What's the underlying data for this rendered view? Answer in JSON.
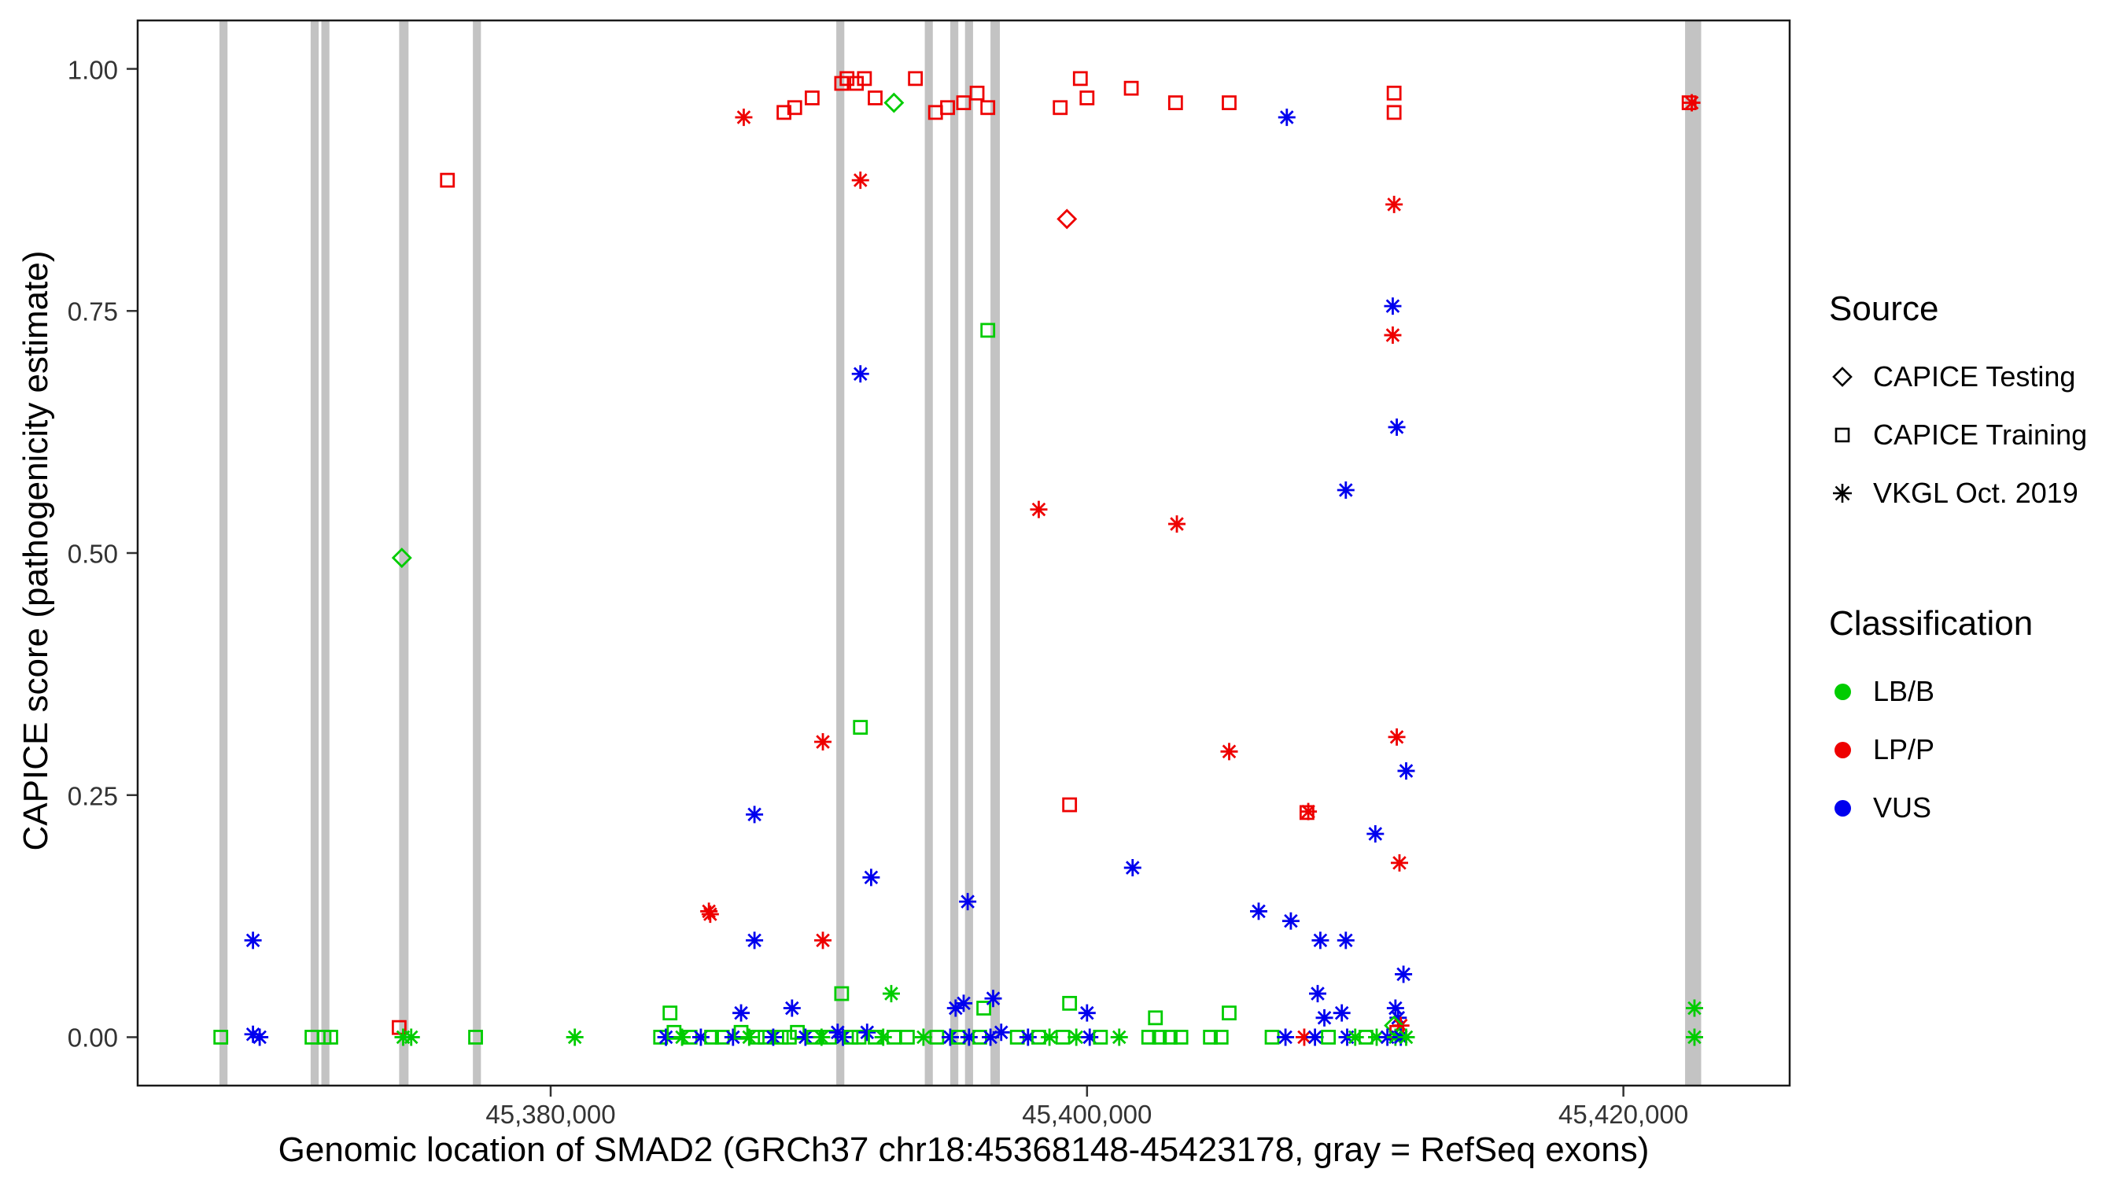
{
  "figure": {
    "y_axis_title": "CAPICE score (pathogenicity estimate)",
    "x_axis_title": "Genomic location of SMAD2 (GRCh37 chr18:45368148-45423178, gray = RefSeq exons)"
  },
  "legend": {
    "source_title": "Source",
    "source_items": [
      {
        "label": "CAPICE Testing",
        "shape": "diamond"
      },
      {
        "label": "CAPICE Training",
        "shape": "square"
      },
      {
        "label": "VKGL Oct. 2019",
        "shape": "asterisk"
      }
    ],
    "classification_title": "Classification",
    "classification_items": [
      {
        "label": "LB/B",
        "color": "#00CC00"
      },
      {
        "label": "LP/P",
        "color": "#EE0000"
      },
      {
        "label": "VUS",
        "color": "#0000EE"
      }
    ]
  },
  "colors": {
    "g": "#00CC00",
    "r": "#EE0000",
    "b": "#0000EE",
    "exon": "#C3C3C3",
    "panel_border": "#1a1a1a",
    "tick": "#333333"
  },
  "chart_data": {
    "type": "scatter",
    "title": "",
    "xlabel": "Genomic location of SMAD2 (GRCh37 chr18:45368148-45423178, gray = RefSeq exons)",
    "ylabel": "CAPICE score (pathogenicity estimate)",
    "xlim": [
      45364600,
      45426200
    ],
    "ylim": [
      -0.05,
      1.05
    ],
    "grid": false,
    "legend_position": "right",
    "x_ticks": [
      45380000,
      45400000,
      45420000
    ],
    "x_tick_labels": [
      "45,380,000",
      "45,400,000",
      "45,420,000"
    ],
    "y_ticks": [
      0,
      0.25,
      0.5,
      0.75,
      1
    ],
    "y_tick_labels": [
      "0.00",
      "0.25",
      "0.50",
      "0.75",
      "1.00"
    ],
    "encoding": {
      "point_format": "[genomic_position, capice_score, source_code, classification_code]",
      "source": {
        "D": "CAPICE Testing (open diamond)",
        "S": "CAPICE Training (open square)",
        "A": "VKGL Oct. 2019 (asterisk)"
      },
      "classification": {
        "g": "LB/B (green)",
        "r": "LP/P (red)",
        "b": "VUS (blue)"
      }
    },
    "exons_note": "gray vertical bars = RefSeq exons, [start, end] genomic coordinates",
    "exons": [
      [
        45367650,
        45367950
      ],
      [
        45371050,
        45371350
      ],
      [
        45371450,
        45371750
      ],
      [
        45374350,
        45374700
      ],
      [
        45377100,
        45377400
      ],
      [
        45390650,
        45390950
      ],
      [
        45393950,
        45394250
      ],
      [
        45394900,
        45395200
      ],
      [
        45395450,
        45395750
      ],
      [
        45396400,
        45396750
      ],
      [
        45422300,
        45422900
      ]
    ],
    "points": [
      [
        45387200,
        0.95,
        "A",
        "r"
      ],
      [
        45388700,
        0.955,
        "S",
        "r"
      ],
      [
        45389100,
        0.96,
        "S",
        "r"
      ],
      [
        45389750,
        0.97,
        "S",
        "r"
      ],
      [
        45390850,
        0.985,
        "S",
        "r"
      ],
      [
        45391050,
        0.99,
        "S",
        "r"
      ],
      [
        45391400,
        0.985,
        "S",
        "r"
      ],
      [
        45391700,
        0.99,
        "S",
        "r"
      ],
      [
        45392100,
        0.97,
        "S",
        "r"
      ],
      [
        45392800,
        0.965,
        "D",
        "g"
      ],
      [
        45393600,
        0.99,
        "S",
        "r"
      ],
      [
        45394350,
        0.955,
        "S",
        "r"
      ],
      [
        45394800,
        0.96,
        "S",
        "r"
      ],
      [
        45395400,
        0.965,
        "S",
        "r"
      ],
      [
        45395900,
        0.975,
        "S",
        "r"
      ],
      [
        45396300,
        0.96,
        "S",
        "r"
      ],
      [
        45399000,
        0.96,
        "S",
        "r"
      ],
      [
        45399750,
        0.99,
        "S",
        "r"
      ],
      [
        45400000,
        0.97,
        "S",
        "r"
      ],
      [
        45401650,
        0.98,
        "S",
        "r"
      ],
      [
        45403300,
        0.965,
        "S",
        "r"
      ],
      [
        45405300,
        0.965,
        "S",
        "r"
      ],
      [
        45407450,
        0.95,
        "A",
        "b"
      ],
      [
        45411450,
        0.975,
        "S",
        "r"
      ],
      [
        45411450,
        0.955,
        "S",
        "r"
      ],
      [
        45422450,
        0.965,
        "S",
        "r"
      ],
      [
        45422550,
        0.965,
        "A",
        "r"
      ],
      [
        45376150,
        0.885,
        "S",
        "r"
      ],
      [
        45391550,
        0.885,
        "A",
        "r"
      ],
      [
        45399250,
        0.845,
        "D",
        "r"
      ],
      [
        45411450,
        0.86,
        "A",
        "r"
      ],
      [
        45411400,
        0.755,
        "A",
        "b"
      ],
      [
        45411400,
        0.725,
        "A",
        "r"
      ],
      [
        45396300,
        0.73,
        "S",
        "g"
      ],
      [
        45391550,
        0.685,
        "A",
        "b"
      ],
      [
        45411550,
        0.63,
        "A",
        "b"
      ],
      [
        45409650,
        0.565,
        "A",
        "b"
      ],
      [
        45398200,
        0.545,
        "A",
        "r"
      ],
      [
        45403350,
        0.53,
        "A",
        "r"
      ],
      [
        45374450,
        0.495,
        "D",
        "g"
      ],
      [
        45391550,
        0.32,
        "S",
        "g"
      ],
      [
        45390150,
        0.305,
        "A",
        "r"
      ],
      [
        45411550,
        0.31,
        "A",
        "r"
      ],
      [
        45405300,
        0.295,
        "A",
        "r"
      ],
      [
        45411900,
        0.275,
        "A",
        "b"
      ],
      [
        45399350,
        0.24,
        "S",
        "r"
      ],
      [
        45408200,
        0.232,
        "S",
        "r"
      ],
      [
        45408250,
        0.233,
        "A",
        "r"
      ],
      [
        45387600,
        0.23,
        "A",
        "b"
      ],
      [
        45410750,
        0.21,
        "A",
        "b"
      ],
      [
        45411650,
        0.18,
        "A",
        "r"
      ],
      [
        45401700,
        0.175,
        "A",
        "b"
      ],
      [
        45391950,
        0.165,
        "A",
        "b"
      ],
      [
        45395550,
        0.14,
        "A",
        "b"
      ],
      [
        45406400,
        0.13,
        "A",
        "b"
      ],
      [
        45407600,
        0.12,
        "A",
        "b"
      ],
      [
        45385900,
        0.13,
        "A",
        "r"
      ],
      [
        45385950,
        0.127,
        "A",
        "r"
      ],
      [
        45368900,
        0.1,
        "A",
        "b"
      ],
      [
        45408700,
        0.1,
        "A",
        "b"
      ],
      [
        45409650,
        0.1,
        "A",
        "b"
      ],
      [
        45387600,
        0.1,
        "A",
        "b"
      ],
      [
        45390150,
        0.1,
        "A",
        "r"
      ],
      [
        45411800,
        0.065,
        "A",
        "b"
      ],
      [
        45408600,
        0.045,
        "A",
        "b"
      ],
      [
        45390850,
        0.045,
        "S",
        "g"
      ],
      [
        45392700,
        0.045,
        "A",
        "g"
      ],
      [
        45384450,
        0.025,
        "S",
        "g"
      ],
      [
        45387100,
        0.025,
        "A",
        "b"
      ],
      [
        45389000,
        0.03,
        "A",
        "b"
      ],
      [
        45395100,
        0.03,
        "A",
        "b"
      ],
      [
        45395400,
        0.035,
        "A",
        "b"
      ],
      [
        45396150,
        0.03,
        "S",
        "g"
      ],
      [
        45396500,
        0.04,
        "A",
        "b"
      ],
      [
        45399350,
        0.035,
        "S",
        "g"
      ],
      [
        45400000,
        0.025,
        "A",
        "b"
      ],
      [
        45402550,
        0.02,
        "S",
        "g"
      ],
      [
        45405300,
        0.025,
        "S",
        "g"
      ],
      [
        45408850,
        0.02,
        "A",
        "b"
      ],
      [
        45409500,
        0.025,
        "A",
        "b"
      ],
      [
        45411500,
        0.03,
        "A",
        "b"
      ],
      [
        45411600,
        0.02,
        "A",
        "b"
      ],
      [
        45411700,
        0.012,
        "A",
        "r"
      ],
      [
        45411450,
        0.012,
        "D",
        "g"
      ],
      [
        45411550,
        0.005,
        "S",
        "r"
      ],
      [
        45422650,
        0.03,
        "A",
        "g"
      ],
      [
        45367700,
        0.0,
        "S",
        "g"
      ],
      [
        45368900,
        0.003,
        "A",
        "b"
      ],
      [
        45369150,
        0.0,
        "A",
        "b"
      ],
      [
        45371100,
        0.0,
        "S",
        "g"
      ],
      [
        45371550,
        0.0,
        "S",
        "g"
      ],
      [
        45371800,
        0.0,
        "S",
        "g"
      ],
      [
        45374350,
        0.01,
        "S",
        "r"
      ],
      [
        45374500,
        0.0,
        "A",
        "g"
      ],
      [
        45374800,
        0.0,
        "A",
        "g"
      ],
      [
        45377200,
        0.0,
        "S",
        "g"
      ],
      [
        45380900,
        0.0,
        "A",
        "g"
      ],
      [
        45384100,
        0.0,
        "S",
        "g"
      ],
      [
        45384300,
        0.0,
        "A",
        "b"
      ],
      [
        45384600,
        0.005,
        "S",
        "g"
      ],
      [
        45384900,
        0.0,
        "A",
        "g"
      ],
      [
        45385200,
        0.0,
        "S",
        "g"
      ],
      [
        45385600,
        0.0,
        "A",
        "b"
      ],
      [
        45386000,
        0.0,
        "S",
        "g"
      ],
      [
        45386400,
        0.0,
        "S",
        "g"
      ],
      [
        45386800,
        0.0,
        "A",
        "b"
      ],
      [
        45387100,
        0.005,
        "S",
        "g"
      ],
      [
        45387400,
        0.0,
        "A",
        "g"
      ],
      [
        45387700,
        0.0,
        "S",
        "g"
      ],
      [
        45388000,
        0.0,
        "S",
        "g"
      ],
      [
        45388300,
        0.0,
        "A",
        "b"
      ],
      [
        45388600,
        0.0,
        "S",
        "g"
      ],
      [
        45388900,
        0.0,
        "S",
        "g"
      ],
      [
        45389200,
        0.005,
        "S",
        "g"
      ],
      [
        45389500,
        0.0,
        "A",
        "b"
      ],
      [
        45389800,
        0.0,
        "S",
        "g"
      ],
      [
        45390100,
        0.0,
        "A",
        "g"
      ],
      [
        45390400,
        0.0,
        "S",
        "g"
      ],
      [
        45390700,
        0.005,
        "A",
        "b"
      ],
      [
        45390900,
        0.0,
        "A",
        "b"
      ],
      [
        45391200,
        0.0,
        "S",
        "g"
      ],
      [
        45391500,
        0.0,
        "S",
        "g"
      ],
      [
        45391800,
        0.005,
        "A",
        "b"
      ],
      [
        45392100,
        0.0,
        "S",
        "g"
      ],
      [
        45392400,
        0.0,
        "A",
        "g"
      ],
      [
        45392800,
        0.0,
        "S",
        "g"
      ],
      [
        45393300,
        0.0,
        "S",
        "g"
      ],
      [
        45393900,
        0.0,
        "A",
        "g"
      ],
      [
        45394400,
        0.0,
        "S",
        "g"
      ],
      [
        45394900,
        0.0,
        "A",
        "b"
      ],
      [
        45395200,
        0.0,
        "S",
        "g"
      ],
      [
        45395600,
        0.0,
        "A",
        "b"
      ],
      [
        45396000,
        0.0,
        "S",
        "g"
      ],
      [
        45396400,
        0.0,
        "A",
        "b"
      ],
      [
        45396800,
        0.005,
        "A",
        "b"
      ],
      [
        45397400,
        0.0,
        "S",
        "g"
      ],
      [
        45397800,
        0.0,
        "A",
        "b"
      ],
      [
        45398200,
        0.0,
        "S",
        "g"
      ],
      [
        45398600,
        0.0,
        "A",
        "g"
      ],
      [
        45399100,
        0.0,
        "S",
        "g"
      ],
      [
        45399600,
        0.0,
        "A",
        "g"
      ],
      [
        45400100,
        0.0,
        "A",
        "b"
      ],
      [
        45400500,
        0.0,
        "S",
        "g"
      ],
      [
        45401200,
        0.0,
        "A",
        "g"
      ],
      [
        45402300,
        0.0,
        "S",
        "g"
      ],
      [
        45402700,
        0.0,
        "S",
        "g"
      ],
      [
        45403100,
        0.0,
        "S",
        "g"
      ],
      [
        45403500,
        0.0,
        "S",
        "g"
      ],
      [
        45404600,
        0.0,
        "S",
        "g"
      ],
      [
        45405000,
        0.0,
        "S",
        "g"
      ],
      [
        45406900,
        0.0,
        "S",
        "g"
      ],
      [
        45407400,
        0.0,
        "A",
        "b"
      ],
      [
        45408100,
        0.0,
        "A",
        "r"
      ],
      [
        45408500,
        0.0,
        "A",
        "b"
      ],
      [
        45409000,
        0.0,
        "S",
        "g"
      ],
      [
        45409700,
        0.0,
        "A",
        "b"
      ],
      [
        45410000,
        0.0,
        "A",
        "g"
      ],
      [
        45410400,
        0.0,
        "S",
        "g"
      ],
      [
        45410800,
        0.0,
        "A",
        "g"
      ],
      [
        45411200,
        0.0,
        "A",
        "b"
      ],
      [
        45411500,
        0.0,
        "A",
        "g"
      ],
      [
        45411700,
        0.0,
        "A",
        "b"
      ],
      [
        45411900,
        0.0,
        "A",
        "g"
      ],
      [
        45422650,
        0.0,
        "A",
        "g"
      ]
    ]
  }
}
